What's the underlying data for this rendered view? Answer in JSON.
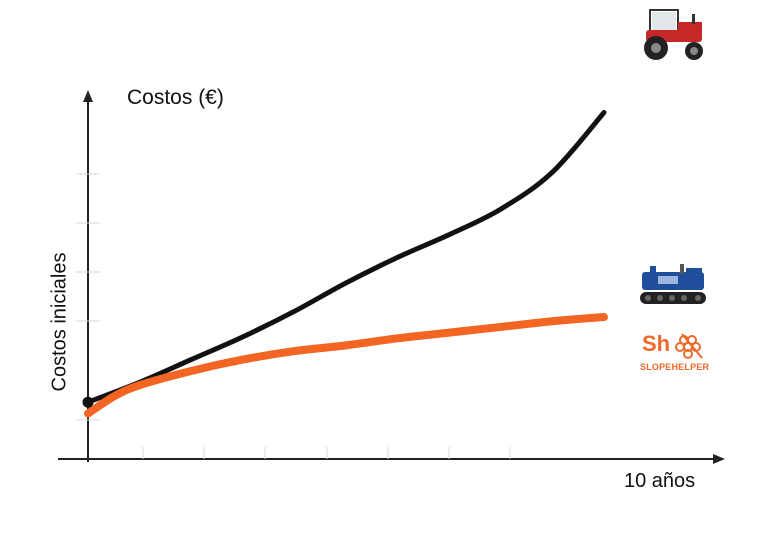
{
  "chart_data": {
    "type": "line",
    "title": "",
    "ylabel_top": "Costos (€)",
    "ylabel_side": "Costos iniciales",
    "xlabel_end": "10 años",
    "xlim": [
      0,
      10
    ],
    "ylim": [
      0,
      10
    ],
    "grid": false,
    "series": [
      {
        "color": "#111111",
        "x": [
          0,
          1,
          2,
          3,
          4,
          5,
          6,
          7,
          8,
          9,
          10
        ],
        "y": [
          2.0,
          2.7,
          3.5,
          4.3,
          5.2,
          6.2,
          7.1,
          7.9,
          8.8,
          10.1,
          12.2
        ]
      },
      {
        "color": "#f26522",
        "x": [
          0,
          0.5,
          1,
          2,
          3,
          4,
          5,
          6,
          7,
          8,
          9,
          10
        ],
        "y": [
          1.6,
          2.2,
          2.6,
          3.1,
          3.5,
          3.8,
          4.0,
          4.25,
          4.45,
          4.65,
          4.85,
          5.0
        ]
      }
    ],
    "start_point_color": "#111111"
  },
  "logo": {
    "initials": "Sh",
    "name": "SLOPEHELPER",
    "color": "#ee6a2a"
  },
  "icons": {
    "top_line": "tractor-icon",
    "bottom_line": "slopehelper-robot-icon"
  }
}
